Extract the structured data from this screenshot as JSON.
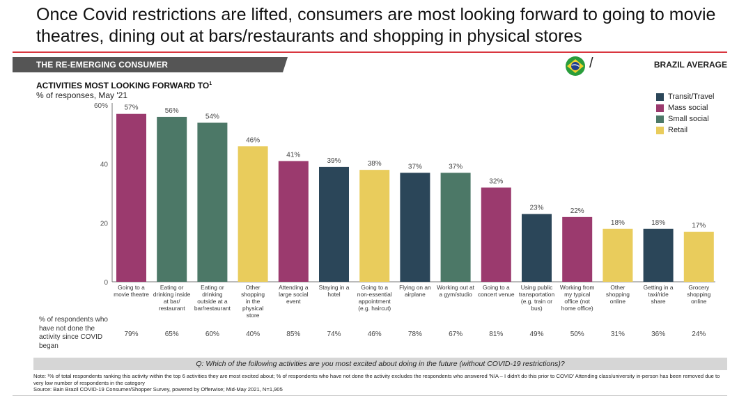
{
  "header": {
    "title": "Once Covid restrictions are lifted, consumers are most looking forward to going to movie theatres, dining out at bars/restaurants and shopping in physical stores",
    "section_label": "THE RE-EMERGING CONSUMER",
    "flag_icon": "brazil-flag-icon",
    "separator": "/",
    "region_label": "BRAZIL AVERAGE",
    "accent_color": "#d9363e"
  },
  "chart_data": {
    "type": "bar",
    "title": "ACTIVITIES MOST LOOKING FORWARD TO",
    "title_footnote_marker": "1",
    "subtitle": "% of responses, May '21",
    "xlabel": "",
    "ylabel": "",
    "ylim": [
      0,
      60
    ],
    "yticks": [
      0,
      20,
      40,
      60
    ],
    "ytick_labels": [
      "0",
      "20",
      "40",
      "60%"
    ],
    "grid": false,
    "legend_position": "top-right",
    "legend": [
      {
        "name": "Transit/Travel",
        "color": "#2b4659"
      },
      {
        "name": "Mass social",
        "color": "#9b3a6e"
      },
      {
        "name": "Small social",
        "color": "#4c7867"
      },
      {
        "name": "Retail",
        "color": "#e9cc5c"
      }
    ],
    "categories": [
      "Going to a movie theatre",
      "Eating or drinking inside at bar/ restaurant",
      "Eating or drinking outside at a bar/restaurant",
      "Other shopping in the physical store",
      "Attending a large social event",
      "Staying in a hotel",
      "Going to a non-essential appointment (e.g. haircut)",
      "Flying on an airplane",
      "Working out at a gym/studio",
      "Going to a concert venue",
      "Using public transportation (e.g. train or bus)",
      "Working from my typical office (not home office)",
      "Other shopping online",
      "Getting in a taxi/ride share",
      "Grocery shopping online"
    ],
    "category_lines": [
      [
        "Going to a",
        "movie theatre"
      ],
      [
        "Eating or",
        "drinking inside",
        "at bar/",
        "restaurant"
      ],
      [
        "Eating or",
        "drinking",
        "outside at a",
        "bar/restaurant"
      ],
      [
        "Other",
        "shopping",
        "in the",
        "physical",
        "store"
      ],
      [
        "Attending a",
        "large social",
        "event"
      ],
      [
        "Staying in a",
        "hotel"
      ],
      [
        "Going to a",
        "non-essential",
        "appointment",
        "(e.g. haircut)"
      ],
      [
        "Flying on an",
        "airplane"
      ],
      [
        "Working out at",
        "a gym/studio"
      ],
      [
        "Going to a",
        "concert venue"
      ],
      [
        "Using public",
        "transportation",
        "(e.g. train or",
        "bus)"
      ],
      [
        "Working from",
        "my typical",
        "office (not",
        "home office)"
      ],
      [
        "Other",
        "shopping",
        "online"
      ],
      [
        "Getting in a",
        "taxi/ride",
        "share"
      ],
      [
        "Grocery",
        "shopping",
        "online"
      ]
    ],
    "groups": [
      "Mass social",
      "Small social",
      "Small social",
      "Retail",
      "Mass social",
      "Transit/Travel",
      "Retail",
      "Transit/Travel",
      "Small social",
      "Mass social",
      "Transit/Travel",
      "Mass social",
      "Retail",
      "Transit/Travel",
      "Retail"
    ],
    "values": [
      57,
      56,
      54,
      46,
      41,
      39,
      38,
      37,
      37,
      32,
      23,
      22,
      18,
      18,
      17
    ],
    "value_labels": [
      "57%",
      "56%",
      "54%",
      "46%",
      "41%",
      "39%",
      "38%",
      "37%",
      "37%",
      "32%",
      "23%",
      "22%",
      "18%",
      "18%",
      "17%"
    ],
    "secondary_row": {
      "label": "% of respondents who have not done the activity since COVID began",
      "values": [
        79,
        65,
        60,
        40,
        85,
        74,
        46,
        78,
        67,
        81,
        49,
        50,
        31,
        36,
        24
      ],
      "value_labels": [
        "79%",
        "65%",
        "60%",
        "40%",
        "85%",
        "74%",
        "46%",
        "78%",
        "67%",
        "81%",
        "49%",
        "50%",
        "31%",
        "36%",
        "24%"
      ]
    }
  },
  "footer": {
    "question": "Q: Which of the following activities are you most excited about doing in the future (without COVID-19 restrictions)?",
    "note": "Note: ¹% of total respondents ranking this activity within the top 6 activities they are most excited about; % of respondents who have not done the activity excludes the respondents who answered 'N/A – I didn't do this prior to COVID' Attending class/university in-person has been removed due to very low number of respondents in the category",
    "source": "Source: Bain Brazil COVID-19 Consumer/Shopper Survey, powered by Offerwise; Mid-May 2021, N=1,905"
  }
}
